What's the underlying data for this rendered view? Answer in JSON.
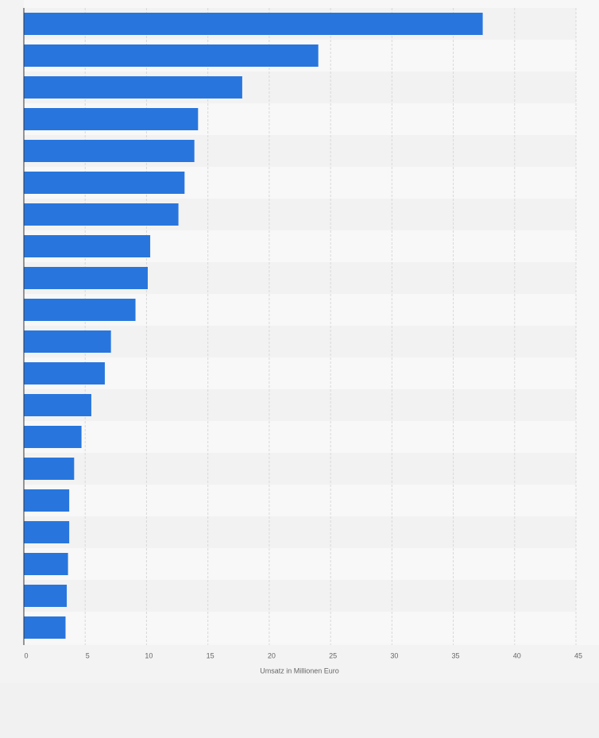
{
  "chart_data": {
    "type": "bar",
    "orientation": "horizontal",
    "x_label": "Umsatz in Millionen Euro",
    "categories": [
      null,
      null,
      null,
      null,
      null,
      null,
      null,
      null,
      null,
      null,
      null,
      null,
      null,
      null,
      null,
      null,
      null,
      null,
      null,
      null
    ],
    "values": [
      37.4,
      24.0,
      17.8,
      14.2,
      13.9,
      13.1,
      12.6,
      10.3,
      10.1,
      9.1,
      7.1,
      6.6,
      5.5,
      4.7,
      4.1,
      3.7,
      3.7,
      3.6,
      3.5,
      3.4
    ],
    "color": "#2876dd",
    "xlim": [
      0,
      45
    ],
    "xticks": [
      0,
      5,
      10,
      15,
      20,
      25,
      30,
      35,
      40,
      45
    ],
    "grid": true
  }
}
